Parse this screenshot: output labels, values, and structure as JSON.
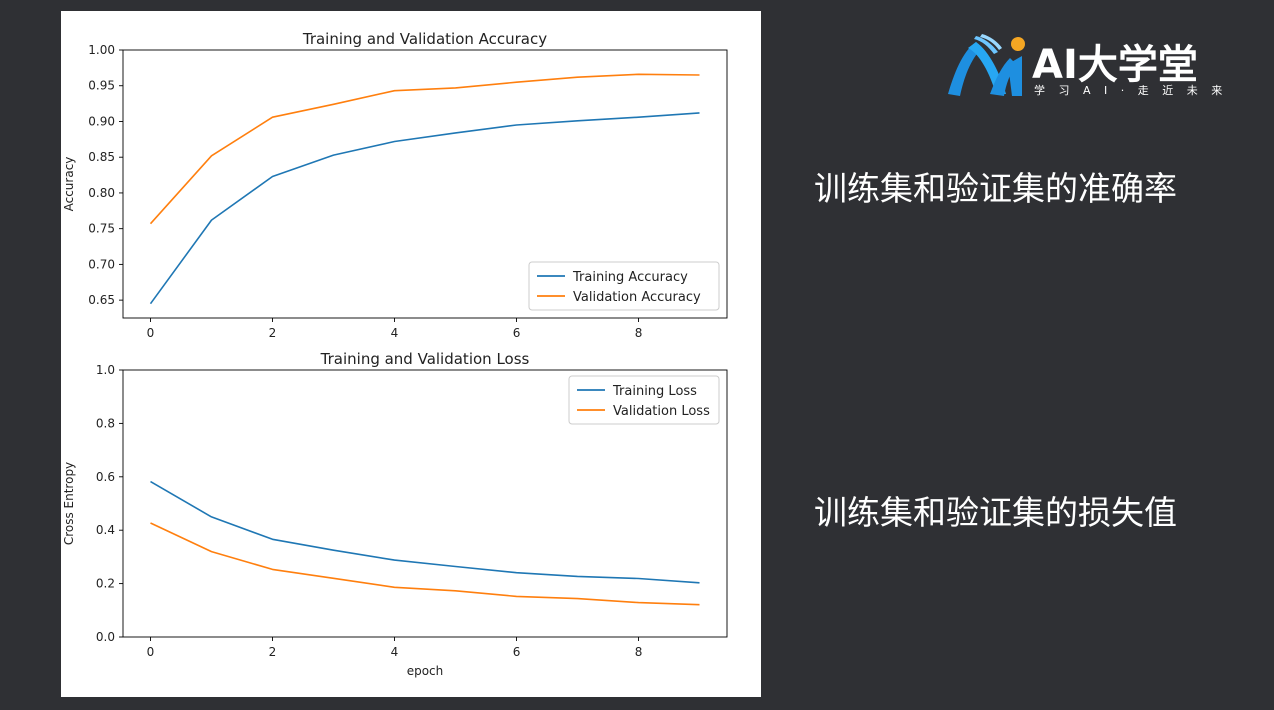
{
  "brand": {
    "name": "AI大学堂",
    "slogan": "学 习 A I · 走 近 未 来",
    "colors": {
      "blue": "#1e8fe0",
      "orange": "#f5a623"
    }
  },
  "captions": {
    "accuracy": "训练集和验证集的准确率",
    "loss": "训练集和验证集的损失值"
  },
  "chart_data": [
    {
      "type": "line",
      "title": "Training and Validation Accuracy",
      "xlabel": "",
      "ylabel": "Accuracy",
      "xlim": [
        -0.45,
        9.45
      ],
      "ylim": [
        0.625,
        1.0
      ],
      "xticks": [
        0,
        2,
        4,
        6,
        8
      ],
      "xtick_labels": [
        "0",
        "2",
        "4",
        "6",
        "8"
      ],
      "yticks": [
        0.65,
        0.7,
        0.75,
        0.8,
        0.85,
        0.9,
        0.95,
        1.0
      ],
      "ytick_labels": [
        "0.65",
        "0.70",
        "0.75",
        "0.80",
        "0.85",
        "0.90",
        "0.95",
        "1.00"
      ],
      "legend_position": "lower-right",
      "x": [
        0,
        1,
        2,
        3,
        4,
        5,
        6,
        7,
        8,
        9
      ],
      "series": [
        {
          "name": "Training Accuracy",
          "color": "#1f77b4",
          "values": [
            0.645,
            0.762,
            0.823,
            0.853,
            0.872,
            0.884,
            0.895,
            0.901,
            0.906,
            0.912
          ]
        },
        {
          "name": "Validation Accuracy",
          "color": "#ff7f0e",
          "values": [
            0.757,
            0.852,
            0.906,
            0.924,
            0.943,
            0.947,
            0.955,
            0.962,
            0.966,
            0.965
          ]
        }
      ]
    },
    {
      "type": "line",
      "title": "Training and Validation Loss",
      "xlabel": "epoch",
      "ylabel": "Cross Entropy",
      "xlim": [
        -0.45,
        9.45
      ],
      "ylim": [
        0.0,
        1.0
      ],
      "xticks": [
        0,
        2,
        4,
        6,
        8
      ],
      "xtick_labels": [
        "0",
        "2",
        "4",
        "6",
        "8"
      ],
      "yticks": [
        0.0,
        0.2,
        0.4,
        0.6,
        0.8,
        1.0
      ],
      "ytick_labels": [
        "0.0",
        "0.2",
        "0.4",
        "0.6",
        "0.8",
        "1.0"
      ],
      "legend_position": "upper-right",
      "x": [
        0,
        1,
        2,
        3,
        4,
        5,
        6,
        7,
        8,
        9
      ],
      "series": [
        {
          "name": "Training Loss",
          "color": "#1f77b4",
          "values": [
            0.582,
            0.45,
            0.366,
            0.325,
            0.288,
            0.264,
            0.241,
            0.227,
            0.219,
            0.203
          ]
        },
        {
          "name": "Validation Loss",
          "color": "#ff7f0e",
          "values": [
            0.427,
            0.32,
            0.253,
            0.22,
            0.186,
            0.173,
            0.152,
            0.144,
            0.129,
            0.121
          ]
        }
      ]
    }
  ]
}
